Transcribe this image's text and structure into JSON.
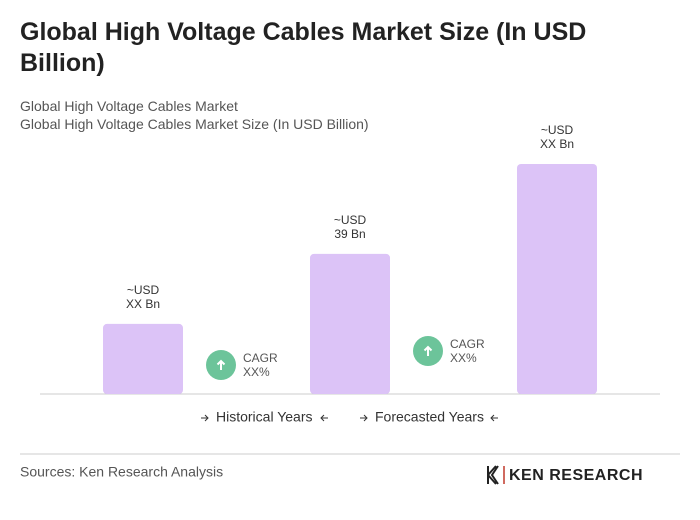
{
  "chart_data": {
    "type": "bar",
    "title": "Global High Voltage Cables Market Size (In USD Billion)",
    "subtitle": "Global High Voltage Cables Market",
    "values": [
      19.5,
      39,
      64
    ],
    "value_labels": [
      [
        "~USD",
        "XX Bn"
      ],
      [
        "~USD",
        "39 Bn"
      ],
      [
        "~USD",
        "XX Bn"
      ]
    ],
    "color": "#dcc3f7",
    "annotations": [
      {
        "label": "CAGR",
        "value_label": "XX%"
      },
      {
        "label": "CAGR",
        "value_label": "XX%"
      }
    ],
    "annotation_color": "#6cc49a",
    "legend": [
      "Historical Years",
      "Forecasted Years"
    ]
  },
  "footer": {
    "source": "Sources: Ken Research Analysis",
    "logo": "KEN RESEARCH"
  }
}
